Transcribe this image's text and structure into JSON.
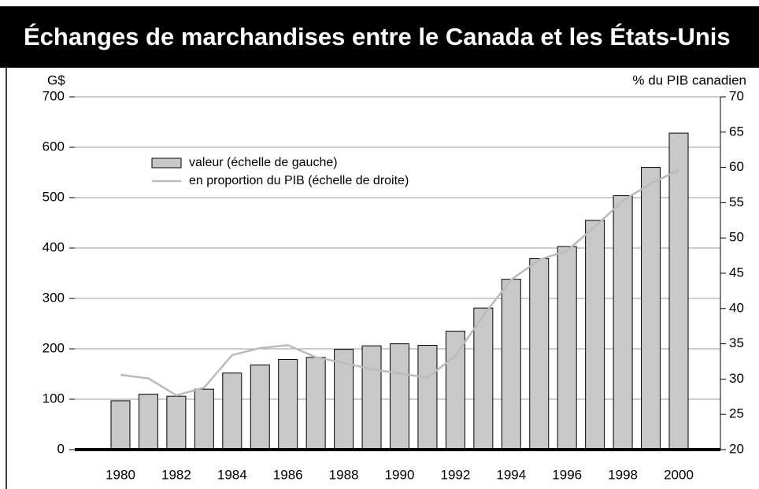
{
  "chart_data": {
    "type": "bar",
    "title": "Échanges de marchandises entre le Canada et les États-Unis",
    "y_label": "G$",
    "y2_label": "% du PIB canadien",
    "categories": [
      "1980",
      null,
      "1982",
      null,
      "1984",
      null,
      "1986",
      null,
      "1988",
      null,
      "1990",
      null,
      "1992",
      null,
      "1994",
      null,
      "1996",
      null,
      "1998",
      null,
      "2000"
    ],
    "series": [
      {
        "name": "valeur (échelle de gauche)",
        "type": "bar",
        "color": "#c8c8c8",
        "values": [
          97,
          110,
          106,
          120,
          152,
          168,
          179,
          183,
          199,
          206,
          210,
          207,
          235,
          281,
          338,
          379,
          403,
          455,
          504,
          560,
          628
        ]
      },
      {
        "name": "en proportion du PIB (échelle de droite)",
        "type": "line",
        "axis": "y2",
        "color": "#bbbbbb",
        "values": [
          30.6,
          30.1,
          27.7,
          28.8,
          33.4,
          34.4,
          34.8,
          33.1,
          32.3,
          31.4,
          30.8,
          30.2,
          33.3,
          39.0,
          44.1,
          46.9,
          48.2,
          51.6,
          55.3,
          57.7,
          59.6
        ]
      }
    ],
    "ylim": [
      0,
      700
    ],
    "yticks": [
      0,
      100,
      200,
      300,
      400,
      500,
      600,
      700
    ],
    "y2lim": [
      20,
      70
    ],
    "y2ticks": [
      20,
      25,
      30,
      35,
      40,
      45,
      50,
      55,
      60,
      65,
      70
    ],
    "grid": true
  }
}
